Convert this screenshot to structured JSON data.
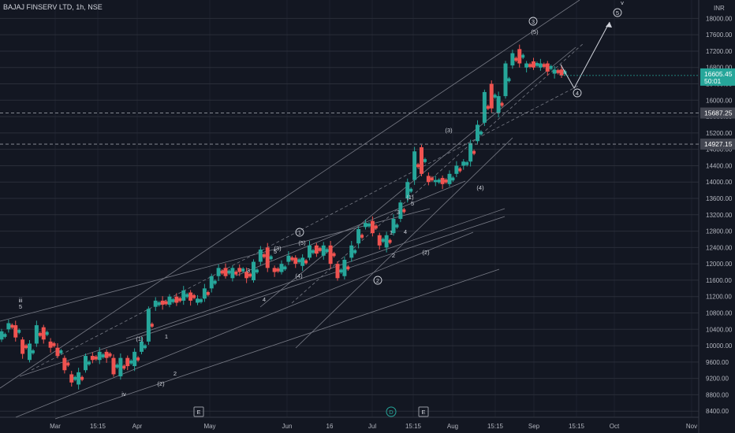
{
  "header": {
    "title": "BAJAJ FINSERV LTD, 1h, NSE",
    "currency": "INR"
  },
  "colors": {
    "background": "#131722",
    "up": "#26a69a",
    "down": "#ef5350",
    "grid": "#2a2e39",
    "axis_text": "#b2b5be",
    "line": "#787b86",
    "price_badge": "#26a69a"
  },
  "chart_data": {
    "type": "candlestick",
    "title": "BAJAJ FINSERV LTD, 1h, NSE",
    "ylabel": "INR",
    "y_ticks": [
      8400,
      8800,
      9200,
      9600,
      10000,
      10400,
      10800,
      11200,
      11600,
      12000,
      12400,
      12800,
      13200,
      13600,
      14000,
      14400,
      14800,
      15200,
      15600,
      16000,
      16400,
      16800,
      17200,
      17600,
      18000
    ],
    "y_tick_labels": [
      "8400.00",
      "8800.00",
      "9200.00",
      "9600.00",
      "10000.00",
      "10400.00",
      "10800.00",
      "11200.00",
      "11600.00",
      "12000.00",
      "12400.00",
      "12800.00",
      "13200.00",
      "13600.00",
      "14000.00",
      "14400.00",
      "14800.00",
      "15200.00",
      "15600.00",
      "16000.00",
      "16400.00",
      "16800.00",
      "17200.00",
      "17600.00",
      "18000.00"
    ],
    "ylim": [
      8250,
      18200
    ],
    "x_tick_labels": [
      "Mar",
      "15:15",
      "Apr",
      "May",
      "Jun",
      "16",
      "Jul",
      "15:15",
      "Aug",
      "15:15",
      "Sep",
      "15:15",
      "Oct",
      "Nov"
    ],
    "price_path": [
      [
        10150,
        10350
      ],
      [
        10400,
        10550
      ],
      [
        10500,
        10200
      ],
      [
        10150,
        9800
      ],
      [
        9650,
        10050
      ],
      [
        10050,
        10500
      ],
      [
        10450,
        10150
      ],
      [
        10100,
        9950
      ],
      [
        9950,
        9750
      ],
      [
        9700,
        9400
      ],
      [
        9300,
        9100
      ],
      [
        9050,
        9350
      ],
      [
        9400,
        9750
      ],
      [
        9750,
        9650
      ],
      [
        9650,
        9850
      ],
      [
        9850,
        9700
      ],
      [
        9700,
        9300
      ],
      [
        9250,
        9700
      ],
      [
        9700,
        9500
      ],
      [
        9500,
        9850
      ],
      [
        9850,
        10100
      ],
      [
        10100,
        10900
      ],
      [
        10950,
        11100
      ],
      [
        11100,
        11000
      ],
      [
        11000,
        11200
      ],
      [
        11200,
        11050
      ],
      [
        11100,
        11350
      ],
      [
        11300,
        11100
      ],
      [
        11050,
        11150
      ],
      [
        11150,
        11400
      ],
      [
        11400,
        11700
      ],
      [
        11700,
        11900
      ],
      [
        11900,
        11700
      ],
      [
        11650,
        11900
      ],
      [
        11900,
        11800
      ],
      [
        11800,
        11650
      ],
      [
        11600,
        12050
      ],
      [
        12050,
        12350
      ],
      [
        12400,
        11900
      ],
      [
        11900,
        11800
      ],
      [
        11800,
        12000
      ],
      [
        12050,
        12200
      ],
      [
        12150,
        12000
      ],
      [
        11950,
        12150
      ],
      [
        12150,
        12450
      ],
      [
        12450,
        12250
      ],
      [
        12200,
        12450
      ],
      [
        12450,
        12000
      ],
      [
        12000,
        11650
      ],
      [
        11700,
        12100
      ],
      [
        12150,
        12450
      ],
      [
        12500,
        12850
      ],
      [
        12900,
        13000
      ],
      [
        13050,
        12750
      ],
      [
        12700,
        12450
      ],
      [
        12400,
        12700
      ],
      [
        12750,
        13100
      ],
      [
        13100,
        13500
      ],
      [
        13600,
        14000
      ],
      [
        14050,
        14750
      ],
      [
        14850,
        14200
      ],
      [
        14150,
        14000
      ],
      [
        14000,
        14050
      ],
      [
        14100,
        13950
      ],
      [
        13950,
        14200
      ],
      [
        14200,
        14400
      ],
      [
        14400,
        14500
      ],
      [
        14500,
        14950
      ],
      [
        15000,
        15400
      ],
      [
        15450,
        16200
      ],
      [
        16400,
        15800
      ],
      [
        15700,
        16100
      ],
      [
        16100,
        16900
      ],
      [
        16850,
        17150
      ],
      [
        17250,
        16900
      ],
      [
        16800,
        16900
      ],
      [
        16950,
        16800
      ],
      [
        16800,
        16900
      ],
      [
        16900,
        16700
      ],
      [
        16650,
        16750
      ],
      [
        16750,
        16605
      ]
    ],
    "current_price": "16605.45",
    "countdown": "50:01",
    "levels": [
      {
        "price": 15687.25,
        "label": "15687.25"
      },
      {
        "price": 14927.15,
        "label": "14927.15"
      }
    ],
    "wave_labels": [
      {
        "text": "iii",
        "x": 0.05,
        "p": 10950,
        "circled": false,
        "color": "#d1d4dc"
      },
      {
        "text": "5",
        "x": 0.05,
        "p": 10750,
        "circled": false,
        "color": "#d1d4dc"
      },
      {
        "text": "(1)",
        "x": 0.3,
        "p": 10000,
        "circled": false,
        "color": "#d1d4dc"
      },
      {
        "text": "1",
        "x": 0.6,
        "p": 10050,
        "circled": false,
        "color": "#d1d4dc"
      },
      {
        "text": "2",
        "x": 0.7,
        "p": 9150,
        "circled": false,
        "color": "#d1d4dc"
      },
      {
        "text": "iv",
        "x": 0.28,
        "p": 8850,
        "circled": false,
        "color": "#d1d4dc"
      },
      {
        "text": "(2)",
        "x": 0.56,
        "p": 9050,
        "circled": false,
        "color": "#d1d4dc"
      },
      {
        "text": "3",
        "x": 1.0,
        "p": 11700,
        "circled": false,
        "color": "#d1d4dc"
      },
      {
        "text": "4",
        "x": 1.0,
        "p": 11050,
        "circled": false,
        "color": "#d1d4dc"
      },
      {
        "text": "(3)",
        "x": 1.2,
        "p": 12220,
        "circled": false,
        "color": "#d1d4dc"
      },
      {
        "text": "5",
        "x": 1.2,
        "p": 12140,
        "circled": false,
        "color": "#d1d4dc"
      },
      {
        "text": "1",
        "x": 1.3,
        "p": 12780,
        "circled": true,
        "color": "#d1d4dc"
      },
      {
        "text": "(5)",
        "x": 1.3,
        "p": 12300,
        "circled": false,
        "color": "#d1d4dc"
      },
      {
        "text": "(4)",
        "x": 1.25,
        "p": 11550,
        "circled": false,
        "color": "#d1d4dc"
      },
      {
        "text": "2",
        "x": 1.6,
        "p": 11350,
        "circled": true,
        "color": "#d1d4dc"
      },
      {
        "text": "1",
        "x": 1.7,
        "p": 12600,
        "circled": false,
        "color": "#d1d4dc"
      },
      {
        "text": "2",
        "x": 1.7,
        "p": 12000,
        "circled": false,
        "color": "#d1d4dc"
      },
      {
        "text": "3",
        "x": 1.8,
        "p": 13100,
        "circled": false,
        "color": "#d1d4dc"
      },
      {
        "text": "4",
        "x": 1.8,
        "p": 12650,
        "circled": false,
        "color": "#d1d4dc"
      },
      {
        "text": "(1)",
        "x": 1.9,
        "p": 13400,
        "circled": false,
        "color": "#d1d4dc"
      },
      {
        "text": "5",
        "x": 1.9,
        "p": 13250,
        "circled": false,
        "color": "#d1d4dc"
      },
      {
        "text": "(2)",
        "x": 1.9,
        "p": 12100,
        "circled": false,
        "color": "#d1d4dc"
      },
      {
        "text": "(3)",
        "x": 2.0,
        "p": 15050,
        "circled": false,
        "color": "#d1d4dc"
      },
      {
        "text": "(4)",
        "x": 2.0,
        "p": 13750,
        "circled": false,
        "color": "#d1d4dc"
      },
      {
        "text": "3",
        "x": 2.2,
        "p": 17600,
        "circled": true,
        "color": "#d1d4dc"
      },
      {
        "text": "(5)",
        "x": 2.2,
        "p": 17350,
        "circled": false,
        "color": "#d1d4dc"
      },
      {
        "text": "4",
        "x": 2.3,
        "p": 16000,
        "circled": true,
        "color": "#d1d4dc"
      },
      {
        "text": "5",
        "x": 2.4,
        "p": 17850,
        "circled": true,
        "color": "#d1d4dc"
      },
      {
        "text": "v",
        "x": 2.4,
        "p": 18100,
        "circled": false,
        "color": "#d1d4dc"
      }
    ],
    "event_markers": [
      "E",
      "D",
      "E"
    ]
  }
}
